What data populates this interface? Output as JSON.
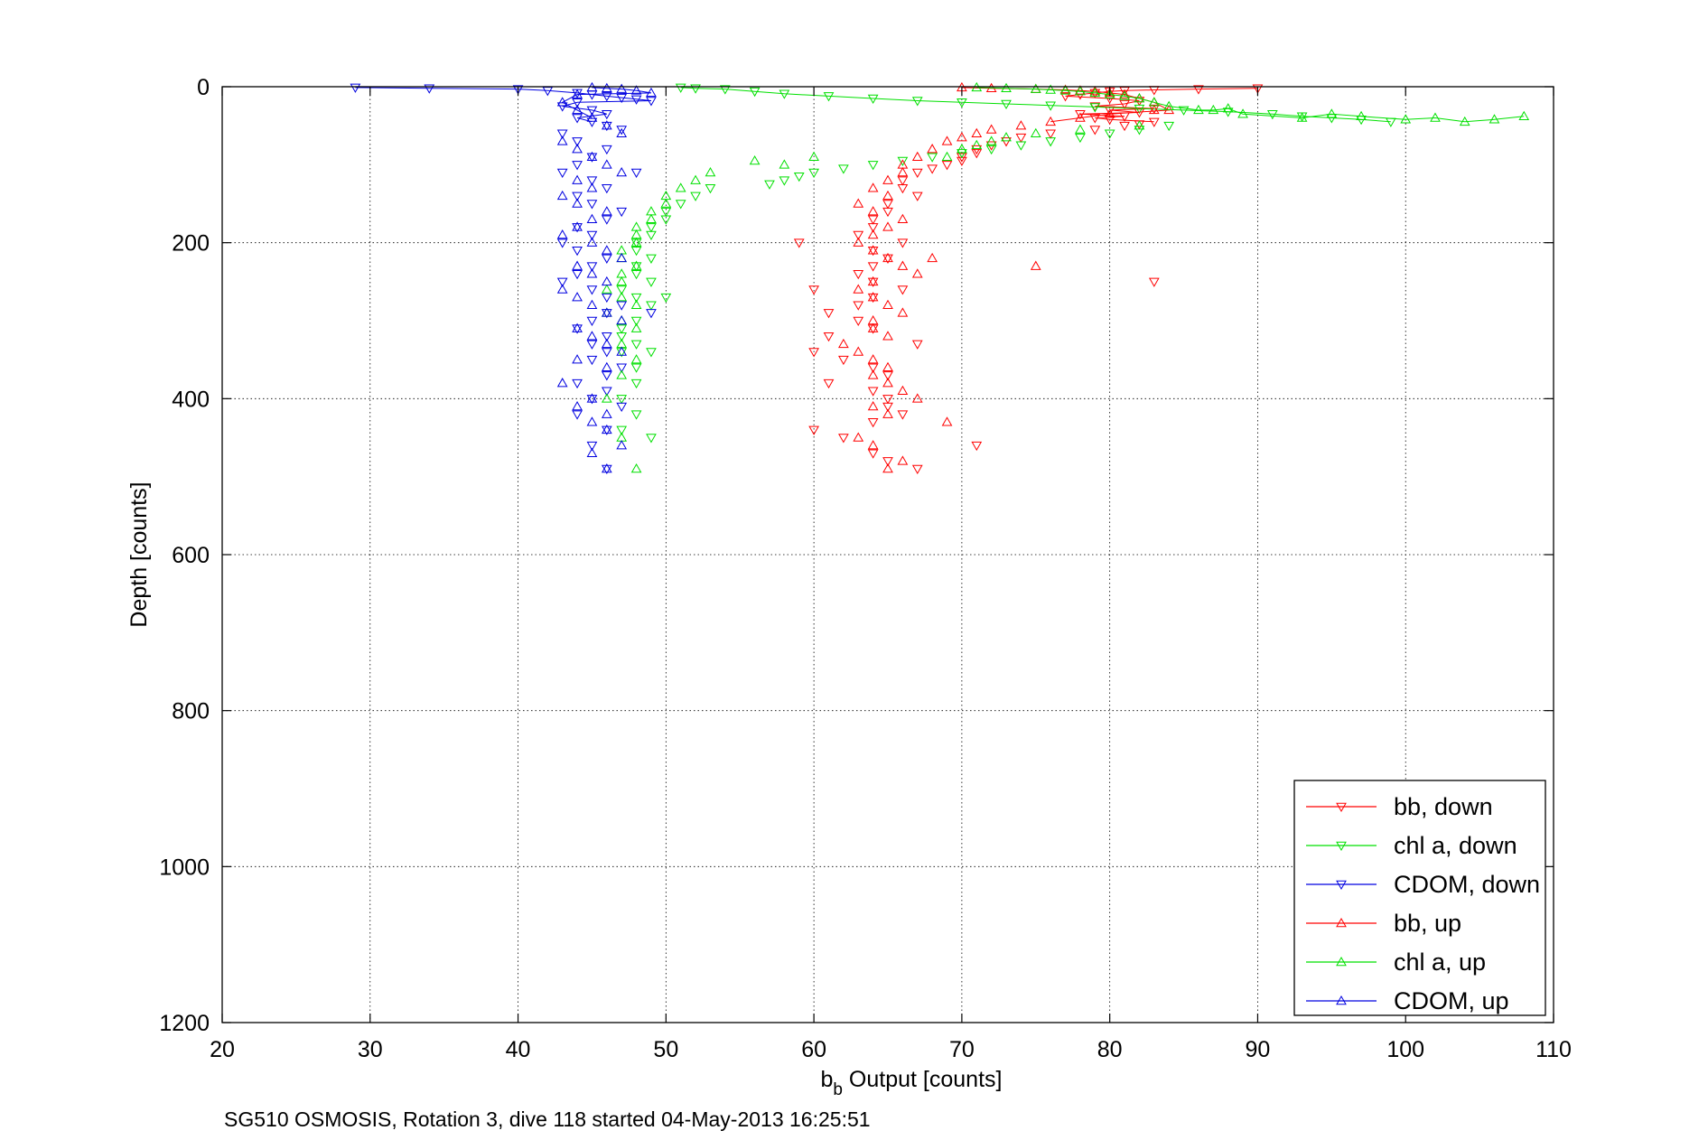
{
  "chart_data": {
    "type": "scatter",
    "xlabel_main": "b",
    "xlabel_sub": "b",
    "xlabel_rest": " Output [counts]",
    "ylabel": "Depth [counts]",
    "footer": "SG510 OSMOSIS, Rotation 3, dive 118 started 04-May-2013 16:25:51",
    "xlim": [
      20,
      110
    ],
    "ylim": [
      0,
      1200
    ],
    "y_reversed": true,
    "grid": true,
    "grid_style": "dotted",
    "legend_placement": "bottom-right",
    "x_ticks": [
      "20",
      "30",
      "40",
      "50",
      "60",
      "70",
      "80",
      "90",
      "100",
      "110"
    ],
    "y_ticks": [
      "0",
      "200",
      "400",
      "600",
      "800",
      "1000",
      "1200"
    ],
    "series": [
      {
        "name": "bb, down",
        "color": "#ff0000",
        "marker": "triangle-down",
        "line": true,
        "x": [
          90,
          86,
          83,
          81,
          80,
          79,
          78,
          77,
          80,
          82,
          81,
          79,
          83,
          80,
          82,
          78,
          81,
          79,
          80,
          83,
          82,
          81,
          79,
          76,
          74,
          73,
          72,
          71,
          71,
          70,
          70,
          69,
          68,
          67,
          66,
          66,
          67,
          65,
          65,
          64,
          64,
          63,
          66,
          64,
          65,
          64,
          63,
          64,
          66,
          64,
          63,
          61,
          59,
          60,
          63,
          64,
          61,
          67,
          60,
          62,
          64,
          65,
          61,
          64,
          65,
          65,
          66,
          64,
          60,
          62,
          71,
          64,
          65,
          67,
          83
        ],
        "y": [
          2,
          3,
          4,
          5,
          6,
          8,
          10,
          12,
          15,
          18,
          22,
          25,
          28,
          30,
          33,
          35,
          38,
          40,
          42,
          45,
          48,
          50,
          55,
          60,
          65,
          70,
          75,
          80,
          85,
          90,
          95,
          100,
          105,
          110,
          120,
          130,
          140,
          150,
          160,
          170,
          180,
          190,
          200,
          210,
          220,
          230,
          240,
          250,
          260,
          270,
          280,
          290,
          200,
          260,
          300,
          310,
          320,
          330,
          340,
          350,
          360,
          370,
          380,
          390,
          400,
          410,
          420,
          430,
          440,
          450,
          460,
          470,
          480,
          490,
          250
        ]
      },
      {
        "name": "chl a, down",
        "color": "#00e000",
        "marker": "triangle-down",
        "line": true,
        "x": [
          51,
          52,
          54,
          56,
          58,
          61,
          64,
          67,
          70,
          73,
          76,
          79,
          82,
          85,
          88,
          91,
          93,
          95,
          97,
          99,
          84,
          82,
          80,
          78,
          76,
          74,
          72,
          70,
          68,
          66,
          64,
          62,
          60,
          59,
          58,
          57,
          53,
          52,
          51,
          50,
          50,
          49,
          49,
          48,
          48,
          49,
          48,
          48,
          49,
          47,
          48,
          49,
          50,
          48,
          47,
          47,
          48,
          47,
          49,
          48,
          48,
          47,
          48,
          47,
          49
        ],
        "y": [
          1,
          2,
          3,
          6,
          9,
          12,
          15,
          18,
          20,
          22,
          24,
          26,
          28,
          30,
          32,
          35,
          38,
          40,
          42,
          45,
          50,
          55,
          60,
          65,
          70,
          75,
          80,
          85,
          90,
          95,
          100,
          105,
          110,
          115,
          120,
          125,
          130,
          140,
          150,
          160,
          170,
          180,
          190,
          200,
          210,
          220,
          230,
          240,
          250,
          260,
          270,
          280,
          270,
          300,
          310,
          320,
          330,
          340,
          340,
          360,
          380,
          400,
          420,
          440,
          450
        ]
      },
      {
        "name": "CDOM, down",
        "color": "#0000e0",
        "marker": "triangle-down",
        "line": true,
        "x": [
          29,
          34,
          40,
          42,
          44,
          45,
          46,
          47,
          48,
          49,
          44,
          43,
          45,
          46,
          44,
          45,
          46,
          47,
          43,
          44,
          46,
          45,
          44,
          43,
          45,
          46,
          44,
          45,
          47,
          46,
          44,
          45,
          43,
          44,
          46,
          45,
          44,
          43,
          45,
          46,
          47,
          46,
          45,
          44,
          46,
          45,
          48,
          49,
          46,
          45,
          47,
          46,
          44,
          46,
          45,
          47,
          44,
          46,
          45,
          46
        ],
        "y": [
          1,
          2,
          3,
          5,
          8,
          10,
          12,
          14,
          16,
          18,
          20,
          25,
          30,
          35,
          40,
          45,
          50,
          55,
          60,
          70,
          80,
          90,
          100,
          110,
          120,
          130,
          140,
          150,
          160,
          170,
          180,
          190,
          200,
          210,
          220,
          230,
          240,
          250,
          260,
          270,
          280,
          290,
          300,
          310,
          320,
          330,
          110,
          290,
          340,
          350,
          360,
          370,
          380,
          390,
          400,
          410,
          420,
          440,
          460,
          490
        ]
      },
      {
        "name": "bb, up",
        "color": "#ff0000",
        "marker": "triangle-up",
        "line": true,
        "x": [
          70,
          72,
          75,
          77,
          78,
          79,
          80,
          81,
          82,
          83,
          84,
          80,
          78,
          76,
          74,
          72,
          71,
          70,
          69,
          68,
          67,
          66,
          66,
          65,
          64,
          65,
          63,
          64,
          66,
          65,
          64,
          63,
          64,
          65,
          66,
          67,
          68,
          64,
          63,
          64,
          65,
          66,
          64,
          75,
          64,
          65,
          62,
          63,
          64,
          65,
          69,
          64,
          65,
          66,
          67,
          64,
          65,
          63,
          64,
          66,
          83,
          65
        ],
        "y": [
          1,
          2,
          3,
          4,
          5,
          6,
          8,
          10,
          15,
          20,
          30,
          35,
          40,
          45,
          50,
          55,
          60,
          65,
          70,
          80,
          90,
          100,
          110,
          120,
          130,
          140,
          150,
          160,
          170,
          180,
          190,
          200,
          210,
          220,
          230,
          240,
          220,
          250,
          260,
          270,
          280,
          290,
          300,
          230,
          310,
          320,
          330,
          340,
          350,
          360,
          430,
          370,
          380,
          390,
          400,
          410,
          420,
          450,
          460,
          480,
          30,
          490
        ]
      },
      {
        "name": "chl a, up",
        "color": "#00e000",
        "marker": "triangle-up",
        "line": true,
        "x": [
          71,
          73,
          75,
          76,
          77,
          78,
          79,
          80,
          81,
          82,
          83,
          84,
          86,
          87,
          88,
          89,
          93,
          95,
          97,
          100,
          102,
          104,
          106,
          108,
          82,
          78,
          75,
          73,
          72,
          71,
          70,
          69,
          60,
          58,
          56,
          53,
          52,
          51,
          50,
          50,
          49,
          49,
          48,
          48,
          48,
          47,
          47,
          48,
          47,
          47,
          46,
          47,
          48,
          46,
          47,
          48,
          47,
          48,
          47,
          46,
          47,
          48
        ],
        "y": [
          1,
          2,
          3,
          4,
          5,
          6,
          8,
          10,
          12,
          15,
          20,
          25,
          30,
          30,
          28,
          35,
          40,
          35,
          38,
          42,
          40,
          45,
          42,
          38,
          50,
          55,
          60,
          65,
          70,
          75,
          80,
          90,
          90,
          100,
          95,
          110,
          120,
          130,
          140,
          150,
          160,
          170,
          180,
          190,
          200,
          210,
          220,
          230,
          240,
          250,
          260,
          270,
          280,
          290,
          300,
          310,
          330,
          350,
          370,
          400,
          450,
          490
        ]
      },
      {
        "name": "CDOM, up",
        "color": "#0000e0",
        "marker": "triangle-up",
        "line": true,
        "x": [
          45,
          46,
          47,
          48,
          49,
          44,
          43,
          44,
          45,
          46,
          47,
          43,
          44,
          45,
          46,
          47,
          44,
          45,
          43,
          44,
          46,
          45,
          44,
          43,
          45,
          46,
          47,
          44,
          45,
          46,
          43,
          44,
          45,
          46,
          47,
          44,
          45,
          46,
          47,
          44,
          46,
          43,
          45,
          46,
          44,
          45,
          46,
          47,
          45,
          46
        ],
        "y": [
          1,
          2,
          3,
          5,
          8,
          10,
          20,
          30,
          40,
          50,
          60,
          70,
          80,
          90,
          100,
          110,
          120,
          130,
          140,
          150,
          160,
          170,
          180,
          190,
          200,
          210,
          220,
          230,
          240,
          250,
          260,
          270,
          280,
          290,
          300,
          310,
          320,
          330,
          340,
          350,
          360,
          380,
          400,
          420,
          410,
          430,
          440,
          460,
          470,
          490
        ]
      }
    ]
  }
}
